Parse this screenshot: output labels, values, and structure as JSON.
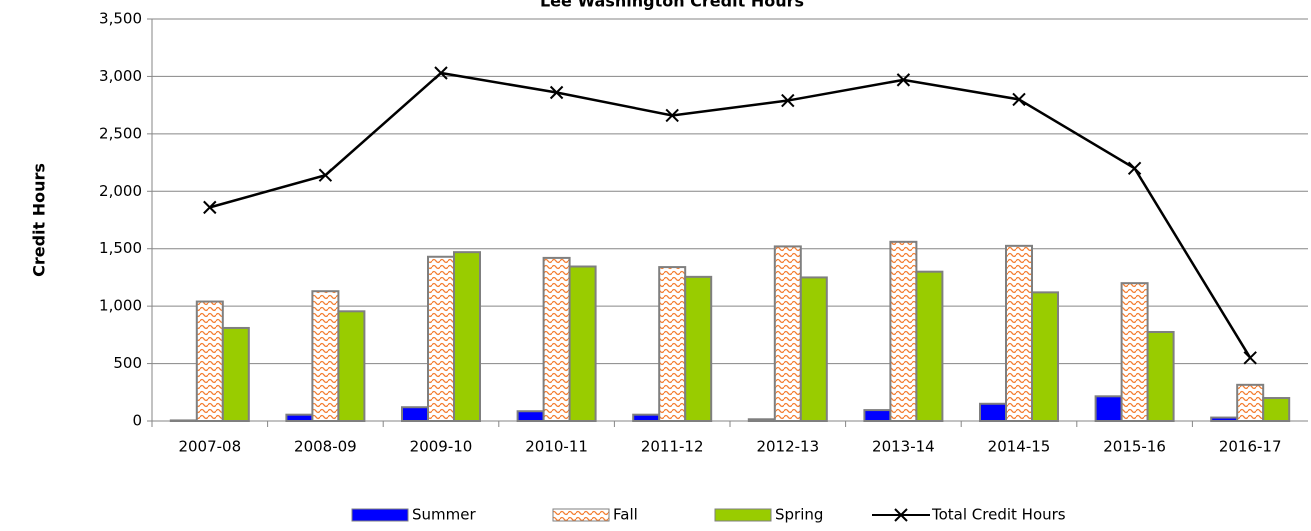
{
  "chart_data": {
    "type": "bar",
    "title": "Lee Washington Credit Hours",
    "y_label": "Credit Hours",
    "categories": [
      "2007-08",
      "2008-09",
      "2009-10",
      "2010-11",
      "2011-12",
      "2012-13",
      "2013-14",
      "2014-15",
      "2015-16",
      "2016-17"
    ],
    "series": [
      {
        "name": "Summer",
        "type": "bar",
        "color": "#0000ff",
        "values": [
          5,
          55,
          120,
          85,
          55,
          15,
          95,
          150,
          215,
          30
        ]
      },
      {
        "name": "Fall",
        "type": "bar",
        "color": "#f47d30",
        "values": [
          1040,
          1130,
          1430,
          1420,
          1340,
          1520,
          1560,
          1525,
          1200,
          315
        ]
      },
      {
        "name": "Spring",
        "type": "bar",
        "color": "#99cc00",
        "values": [
          810,
          955,
          1470,
          1345,
          1255,
          1250,
          1300,
          1120,
          775,
          200
        ]
      },
      {
        "name": "Total Credit Hours",
        "type": "line",
        "color": "#000000",
        "values": [
          1860,
          2140,
          3030,
          2860,
          2660,
          2790,
          2970,
          2800,
          2200,
          550
        ]
      }
    ],
    "ylim": [
      0,
      3500
    ],
    "yticks": [
      0,
      500,
      {
        "value": 1000,
        "label": "1,000"
      },
      {
        "value": 1500,
        "label": "1,500"
      },
      {
        "value": 2000,
        "label": "2,000"
      },
      {
        "value": 2500,
        "label": "2,500"
      },
      {
        "value": 3000,
        "label": "3,000"
      },
      {
        "value": 3500,
        "label": "3,500"
      }
    ],
    "grid": true,
    "legend": "bottom"
  }
}
